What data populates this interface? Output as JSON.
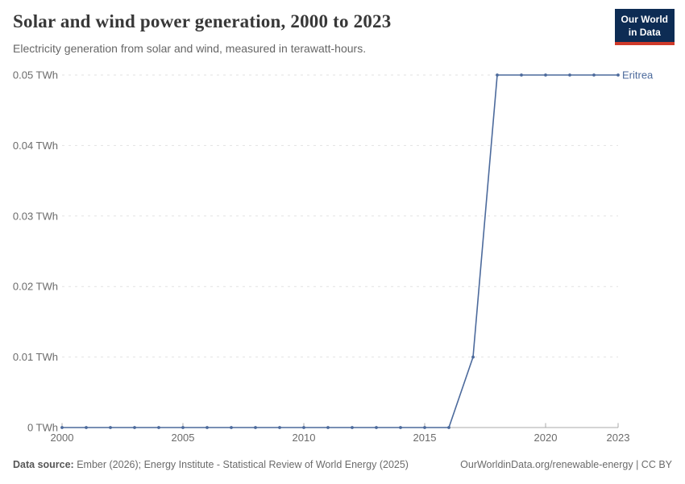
{
  "header": {
    "title": "Solar and wind power generation, 2000 to 2023",
    "subtitle": "Electricity generation from solar and wind, measured in terawatt-hours.",
    "logo": {
      "line1": "Our World",
      "line2": "in Data"
    }
  },
  "chart_data": {
    "type": "line",
    "title": "Solar and wind power generation, 2000 to 2023",
    "subtitle": "Electricity generation from solar and wind, measured in terawatt-hours.",
    "xlabel": "",
    "ylabel": "",
    "xlim": [
      2000,
      2023
    ],
    "ylim": [
      0,
      0.05
    ],
    "grid": "horizontal-dashed",
    "legend_position": "end-of-line-label",
    "x": [
      2000,
      2001,
      2002,
      2003,
      2004,
      2005,
      2006,
      2007,
      2008,
      2009,
      2010,
      2011,
      2012,
      2013,
      2014,
      2015,
      2016,
      2017,
      2018,
      2019,
      2020,
      2021,
      2022,
      2023
    ],
    "series": [
      {
        "name": "Eritrea",
        "color": "#4c6a9c",
        "values": [
          0,
          0,
          0,
          0,
          0,
          0,
          0,
          0,
          0,
          0,
          0,
          0,
          0,
          0,
          0,
          0,
          0,
          0.01,
          0.05,
          0.05,
          0.05,
          0.05,
          0.05,
          0.05
        ]
      }
    ],
    "y_ticks": [
      {
        "value": 0,
        "label": "0 TWh"
      },
      {
        "value": 0.01,
        "label": "0.01 TWh"
      },
      {
        "value": 0.02,
        "label": "0.02 TWh"
      },
      {
        "value": 0.03,
        "label": "0.03 TWh"
      },
      {
        "value": 0.04,
        "label": "0.04 TWh"
      },
      {
        "value": 0.05,
        "label": "0.05 TWh"
      }
    ],
    "x_ticks": [
      {
        "year": 2000,
        "label": "2000"
      },
      {
        "year": 2005,
        "label": "2005"
      },
      {
        "year": 2010,
        "label": "2010"
      },
      {
        "year": 2015,
        "label": "2015"
      },
      {
        "year": 2020,
        "label": "2020"
      },
      {
        "year": 2023,
        "label": "2023"
      }
    ]
  },
  "footer": {
    "source_label": "Data source:",
    "source_text": " Ember (2026); Energy Institute - Statistical Review of World Energy (2025)",
    "right_text": "OurWorldinData.org/renewable-energy | CC BY"
  },
  "colors": {
    "series": "#4c6a9c",
    "grid": "#e2e2e2",
    "axis": "#a8a8a8",
    "tick_text": "#6b6b6b",
    "logo_bg": "#0d2c54",
    "logo_accent": "#cf3a2a"
  }
}
